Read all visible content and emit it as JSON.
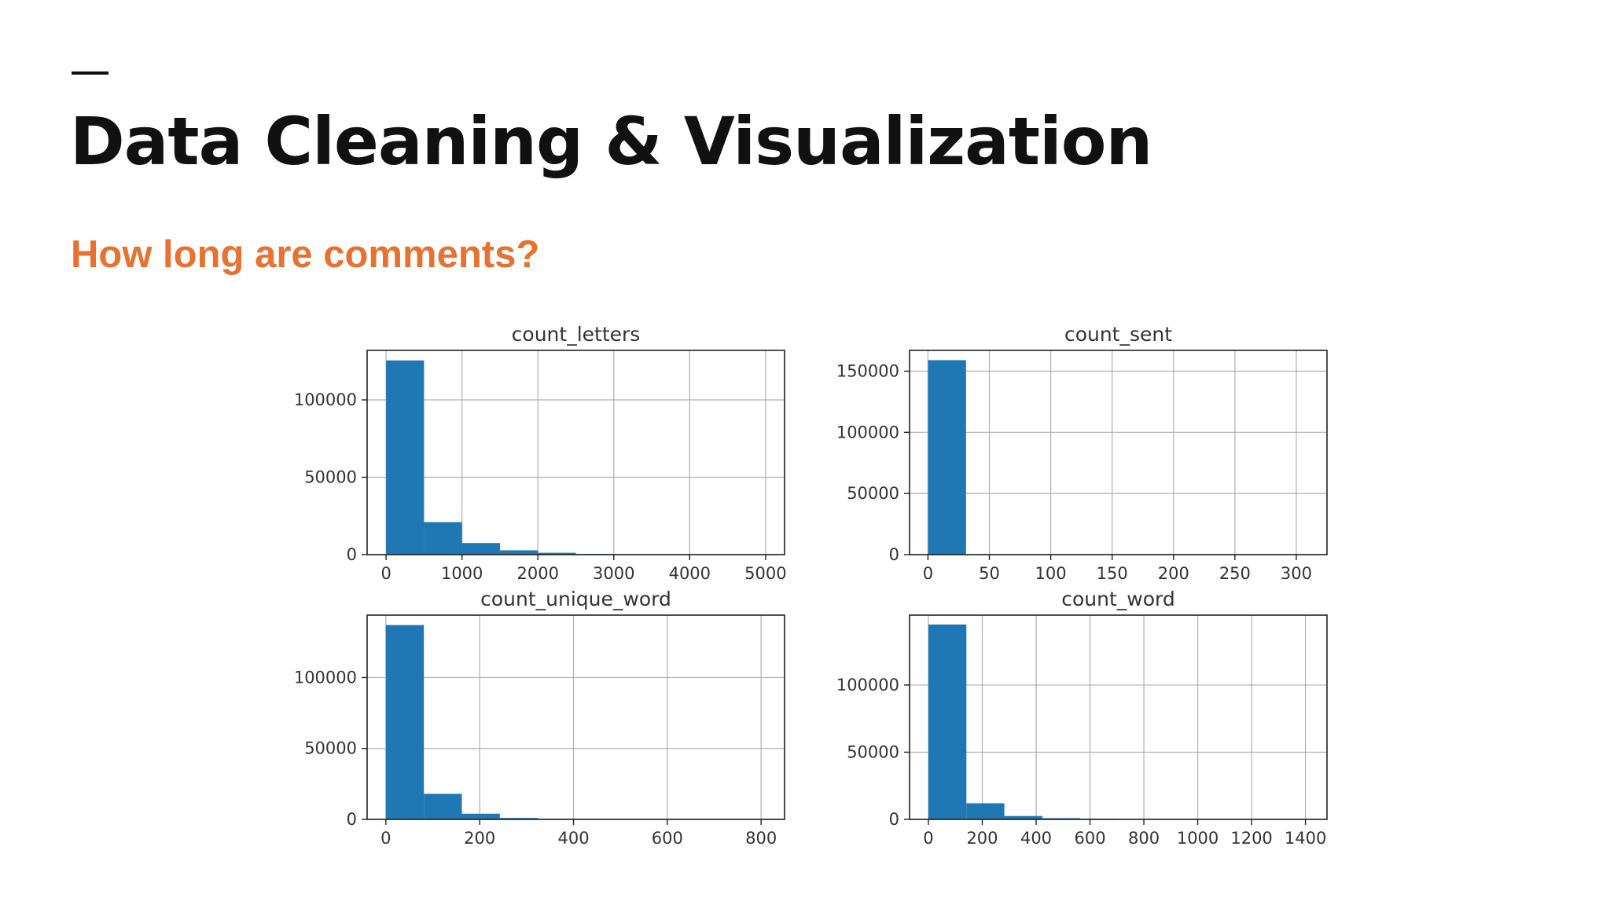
{
  "slide": {
    "title": "Data Cleaning & Visualization",
    "subtitle": "How long are comments?"
  },
  "colors": {
    "bar": "#1f77b4",
    "subtitle": "#e8712f",
    "grid": "#b0b0b0"
  },
  "chart_data": [
    {
      "type": "bar",
      "title": "count_letters",
      "bin_edges": [
        0,
        500,
        1000,
        1500,
        2000,
        2500,
        3000,
        3500,
        4000,
        4500,
        5000
      ],
      "values": [
        125500,
        21000,
        7500,
        2800,
        1200,
        400,
        150,
        60,
        20,
        10
      ],
      "xlim": [
        -250,
        5250
      ],
      "ylim": [
        0,
        132000
      ],
      "xticks": [
        0,
        1000,
        2000,
        3000,
        4000,
        5000
      ],
      "xtick_labels": [
        "0",
        "1000",
        "2000",
        "3000",
        "4000",
        "5000"
      ],
      "yticks": [
        0,
        50000,
        100000
      ],
      "ytick_labels": [
        "0",
        "50000",
        "100000"
      ],
      "grid": true
    },
    {
      "type": "bar",
      "title": "count_sent",
      "bin_edges": [
        0,
        31,
        62,
        93,
        124,
        155,
        186,
        217,
        248,
        279,
        310
      ],
      "values": [
        159000,
        300,
        50,
        20,
        10,
        5,
        3,
        2,
        1,
        1
      ],
      "xlim": [
        -15,
        325
      ],
      "ylim": [
        0,
        167000
      ],
      "xticks": [
        0,
        50,
        100,
        150,
        200,
        250,
        300
      ],
      "xtick_labels": [
        "0",
        "50",
        "100",
        "150",
        "200",
        "250",
        "300"
      ],
      "yticks": [
        0,
        50000,
        100000,
        150000
      ],
      "ytick_labels": [
        "0",
        "50000",
        "100000",
        "150000"
      ],
      "grid": true
    },
    {
      "type": "bar",
      "title": "count_unique_word",
      "bin_edges": [
        0,
        81,
        162,
        243,
        324,
        405,
        486,
        567,
        648,
        729,
        810
      ],
      "values": [
        137000,
        18000,
        4000,
        1000,
        400,
        100,
        50,
        20,
        10,
        5
      ],
      "xlim": [
        -40,
        850
      ],
      "ylim": [
        0,
        144000
      ],
      "xticks": [
        0,
        200,
        400,
        600,
        800
      ],
      "xtick_labels": [
        "0",
        "200",
        "400",
        "600",
        "800"
      ],
      "yticks": [
        0,
        50000,
        100000
      ],
      "ytick_labels": [
        "0",
        "50000",
        "100000"
      ],
      "grid": true
    },
    {
      "type": "bar",
      "title": "count_word",
      "bin_edges": [
        0,
        141,
        282,
        423,
        564,
        705,
        846,
        987,
        1128,
        1269,
        1410
      ],
      "values": [
        145000,
        12000,
        2500,
        900,
        500,
        300,
        80,
        30,
        10,
        5
      ],
      "xlim": [
        -70,
        1480
      ],
      "ylim": [
        0,
        152000
      ],
      "xticks": [
        0,
        200,
        400,
        600,
        800,
        1000,
        1200,
        1400
      ],
      "xtick_labels": [
        "0",
        "200",
        "400",
        "600",
        "800",
        "1000",
        "1200",
        "1400"
      ],
      "yticks": [
        0,
        50000,
        100000
      ],
      "ytick_labels": [
        "0",
        "50000",
        "100000"
      ],
      "grid": true
    }
  ]
}
